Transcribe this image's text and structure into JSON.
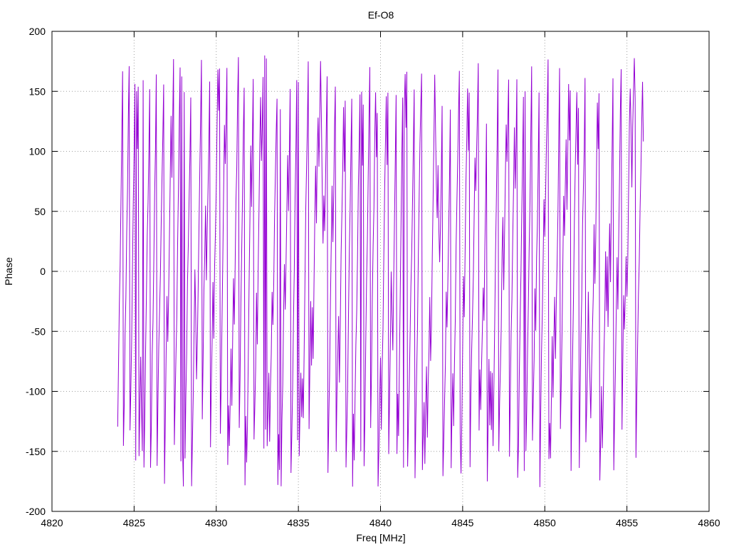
{
  "chart_data": {
    "type": "line",
    "title": "Ef-O8",
    "xlabel": "Freq [MHz]",
    "ylabel": "Phase",
    "xlim": [
      4820,
      4860
    ],
    "ylim": [
      -200,
      200
    ],
    "x_ticks": [
      "4820",
      "4825",
      "4830",
      "4835",
      "4840",
      "4845",
      "4850",
      "4855",
      "4860"
    ],
    "y_ticks": [
      "-200",
      "-150",
      "-100",
      "-50",
      "0",
      "50",
      "100",
      "150",
      "200"
    ],
    "grid": true,
    "legend": "none",
    "series": [
      {
        "color": "#9400d3",
        "x_range": [
          4824.0,
          4856.0
        ],
        "sample_spacing_mhz": 0.05,
        "phase_wrap_range": [
          -180,
          180
        ],
        "start_phase_deg": 180,
        "mean_phase_step_deg_per_sample": 45,
        "note_wrapped": "phase wraps continuously between -180 and 180 degrees across the band"
      }
    ],
    "colors": {
      "line": "#9400d3",
      "grid": "#a0a0a0",
      "frame": "#000000"
    }
  }
}
